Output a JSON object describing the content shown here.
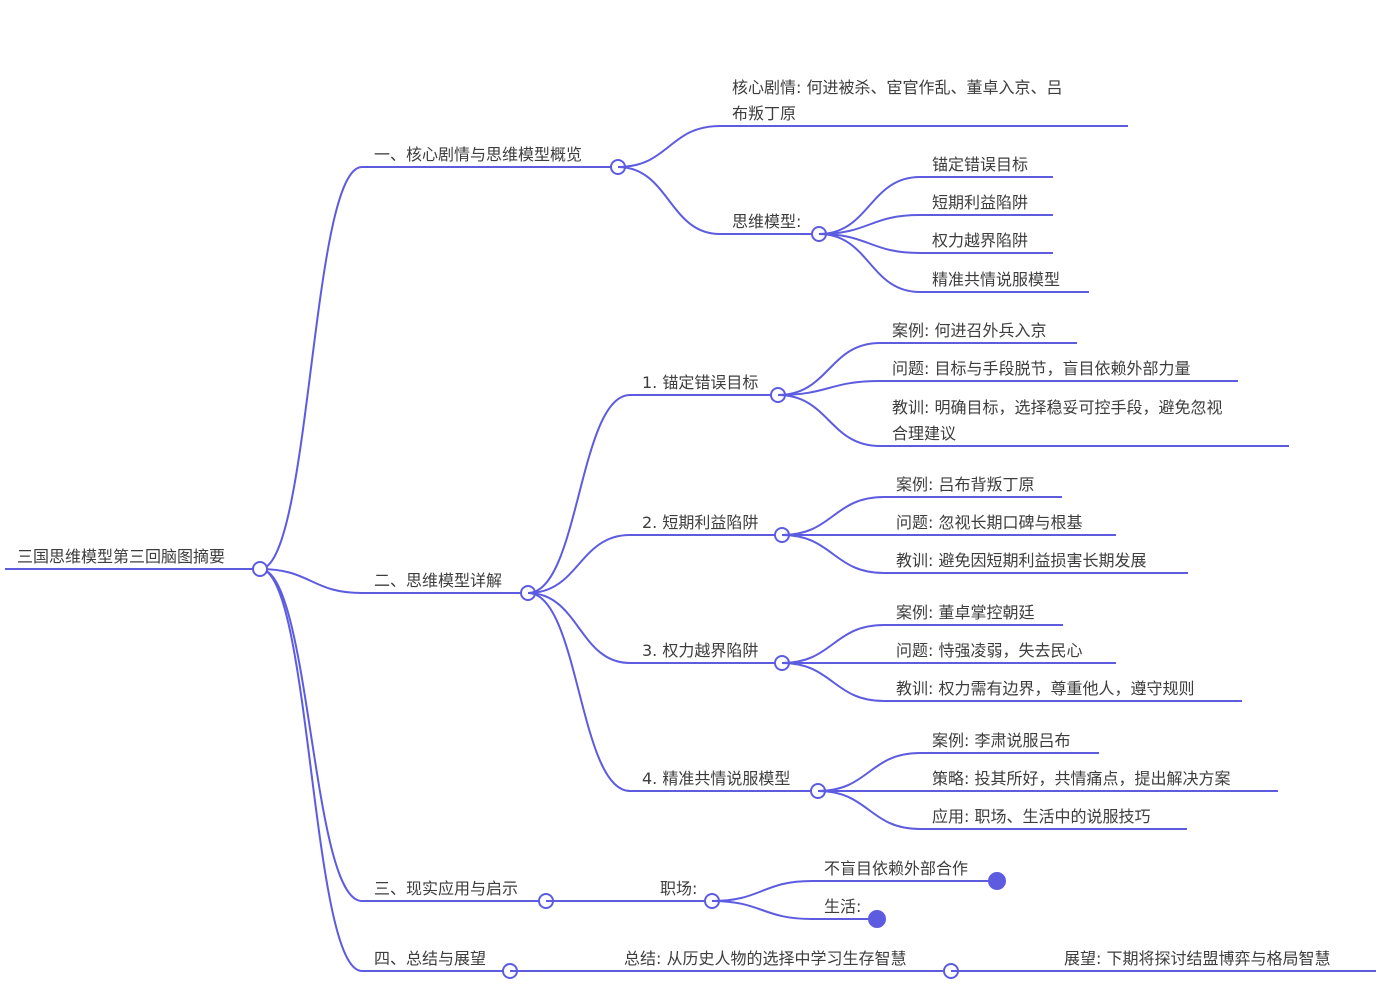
{
  "root": {
    "label": "三国思维模型第三回脑图摘要"
  },
  "branches": [
    {
      "label": "一、核心剧情与思维模型概览",
      "children": [
        {
          "lines": [
            "核心剧情: 何进被杀、宦官作乱、董卓入京、吕",
            "布叛丁原"
          ]
        },
        {
          "label": "思维模型:",
          "children": [
            "锚定错误目标",
            "短期利益陷阱",
            "权力越界陷阱",
            "精准共情说服模型"
          ]
        }
      ]
    },
    {
      "label": "二、思维模型详解",
      "children": [
        {
          "label": "1. 锚定错误目标",
          "children": [
            [
              "案例: 何进召外兵入京"
            ],
            [
              "问题: 目标与手段脱节，盲目依赖外部力量"
            ],
            [
              "教训: 明确目标，选择稳妥可控手段，避免忽视",
              "合理建议"
            ]
          ]
        },
        {
          "label": "2. 短期利益陷阱",
          "children": [
            [
              "案例: 吕布背叛丁原"
            ],
            [
              "问题: 忽视长期口碑与根基"
            ],
            [
              "教训: 避免因短期利益损害长期发展"
            ]
          ]
        },
        {
          "label": "3. 权力越界陷阱",
          "children": [
            [
              "案例: 董卓掌控朝廷"
            ],
            [
              "问题: 恃强凌弱，失去民心"
            ],
            [
              "教训: 权力需有边界，尊重他人，遵守规则"
            ]
          ]
        },
        {
          "label": "4. 精准共情说服模型",
          "children": [
            [
              "案例: 李肃说服吕布"
            ],
            [
              "策略: 投其所好，共情痛点，提出解决方案"
            ],
            [
              "应用: 职场、生活中的说服技巧"
            ]
          ]
        }
      ]
    },
    {
      "label": "三、现实应用与启示",
      "children": [
        {
          "label": "职场:",
          "children": [
            "不盲目依赖外部合作",
            "生活:"
          ]
        }
      ]
    },
    {
      "label": "四、总结与展望",
      "children": [
        {
          "label": "总结: 从历史人物的选择中学习生存智慧",
          "next": "展望: 下期将探讨结盟博弈与格局智慧"
        }
      ]
    }
  ],
  "colors": {
    "line": "#5d5ce0",
    "text": "#3d3d3d",
    "background": "#ffffff"
  }
}
